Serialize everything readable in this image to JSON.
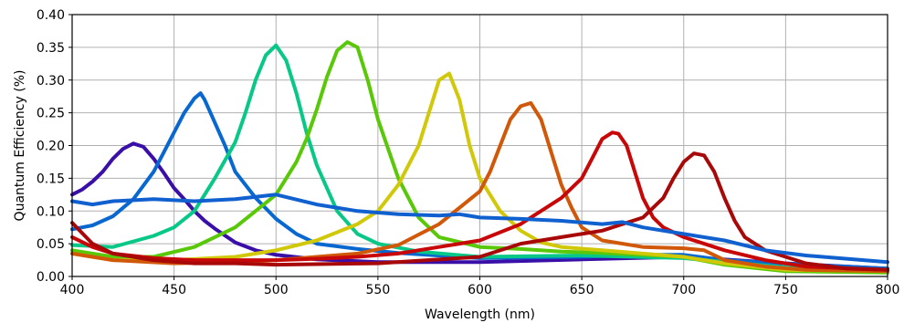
{
  "chart_data": {
    "type": "line",
    "title": "",
    "xlabel": "Wavelength (nm)",
    "ylabel": "Quantum Efficiency (%)",
    "xlim": [
      400,
      800
    ],
    "ylim": [
      0,
      0.4
    ],
    "xticks": [
      400,
      450,
      500,
      550,
      600,
      650,
      700,
      750,
      800
    ],
    "yticks": [
      0.0,
      0.05,
      0.1,
      0.15,
      0.2,
      0.25,
      0.3,
      0.35,
      0.4
    ],
    "xtick_labels": [
      "400",
      "450",
      "500",
      "550",
      "600",
      "650",
      "700",
      "750",
      "800"
    ],
    "ytick_labels": [
      "0.00",
      "0.05",
      "0.10",
      "0.15",
      "0.20",
      "0.25",
      "0.30",
      "0.35",
      "0.40"
    ],
    "grid": true,
    "legend": "none",
    "series": [
      {
        "color": "#3a0fa8",
        "x": [
          400,
          405,
          410,
          415,
          420,
          425,
          430,
          435,
          440,
          445,
          450,
          455,
          460,
          465,
          470,
          480,
          490,
          500,
          520,
          550,
          600,
          650,
          700,
          750,
          800
        ],
        "y": [
          0.125,
          0.133,
          0.145,
          0.16,
          0.18,
          0.195,
          0.203,
          0.198,
          0.18,
          0.158,
          0.135,
          0.118,
          0.1,
          0.085,
          0.073,
          0.052,
          0.04,
          0.033,
          0.026,
          0.022,
          0.022,
          0.026,
          0.03,
          0.02,
          0.012
        ]
      },
      {
        "color": "#0868d0",
        "x": [
          400,
          410,
          420,
          430,
          440,
          445,
          450,
          455,
          460,
          463,
          465,
          470,
          475,
          480,
          490,
          500,
          510,
          520,
          540,
          560,
          600,
          650,
          680,
          700,
          720,
          760,
          800
        ],
        "y": [
          0.072,
          0.078,
          0.092,
          0.118,
          0.16,
          0.19,
          0.22,
          0.25,
          0.272,
          0.28,
          0.27,
          0.235,
          0.2,
          0.16,
          0.12,
          0.088,
          0.065,
          0.05,
          0.042,
          0.036,
          0.028,
          0.03,
          0.033,
          0.033,
          0.025,
          0.018,
          0.012
        ]
      },
      {
        "color": "#08c888",
        "x": [
          400,
          420,
          440,
          450,
          460,
          470,
          480,
          485,
          490,
          495,
          500,
          505,
          510,
          515,
          520,
          530,
          540,
          550,
          570,
          600,
          650,
          700,
          750,
          800
        ],
        "y": [
          0.048,
          0.045,
          0.062,
          0.075,
          0.1,
          0.15,
          0.205,
          0.25,
          0.3,
          0.338,
          0.353,
          0.33,
          0.28,
          0.22,
          0.17,
          0.1,
          0.065,
          0.05,
          0.038,
          0.03,
          0.032,
          0.028,
          0.014,
          0.01
        ]
      },
      {
        "color": "#58c808",
        "x": [
          400,
          420,
          440,
          460,
          480,
          500,
          510,
          515,
          520,
          525,
          530,
          535,
          540,
          545,
          550,
          560,
          570,
          580,
          600,
          620,
          640,
          660,
          700,
          720,
          750,
          800
        ],
        "y": [
          0.04,
          0.03,
          0.03,
          0.045,
          0.075,
          0.125,
          0.175,
          0.21,
          0.255,
          0.305,
          0.345,
          0.358,
          0.35,
          0.3,
          0.24,
          0.15,
          0.09,
          0.06,
          0.045,
          0.042,
          0.038,
          0.036,
          0.03,
          0.018,
          0.008,
          0.006
        ]
      },
      {
        "color": "#d0c808",
        "x": [
          400,
          420,
          450,
          480,
          500,
          520,
          540,
          550,
          560,
          570,
          575,
          580,
          585,
          590,
          595,
          600,
          610,
          620,
          630,
          640,
          660,
          680,
          700,
          720,
          750,
          800
        ],
        "y": [
          0.035,
          0.025,
          0.025,
          0.03,
          0.04,
          0.055,
          0.08,
          0.1,
          0.14,
          0.2,
          0.25,
          0.3,
          0.31,
          0.27,
          0.2,
          0.15,
          0.1,
          0.07,
          0.052,
          0.045,
          0.04,
          0.035,
          0.03,
          0.02,
          0.01,
          0.008
        ]
      },
      {
        "color": "#d05808",
        "x": [
          400,
          420,
          450,
          480,
          500,
          540,
          560,
          580,
          590,
          600,
          605,
          610,
          615,
          620,
          625,
          630,
          635,
          640,
          645,
          650,
          660,
          680,
          700,
          710,
          720,
          740,
          760,
          800
        ],
        "y": [
          0.035,
          0.025,
          0.02,
          0.022,
          0.025,
          0.035,
          0.048,
          0.08,
          0.105,
          0.13,
          0.16,
          0.2,
          0.24,
          0.26,
          0.265,
          0.24,
          0.19,
          0.14,
          0.105,
          0.075,
          0.055,
          0.045,
          0.043,
          0.04,
          0.025,
          0.015,
          0.01,
          0.008
        ]
      },
      {
        "color": "#c80808",
        "x": [
          400,
          410,
          420,
          440,
          460,
          480,
          500,
          520,
          540,
          560,
          580,
          600,
          620,
          640,
          650,
          655,
          660,
          665,
          668,
          672,
          675,
          680,
          685,
          690,
          700,
          720,
          740,
          760,
          800
        ],
        "y": [
          0.06,
          0.045,
          0.035,
          0.028,
          0.025,
          0.025,
          0.025,
          0.027,
          0.03,
          0.035,
          0.045,
          0.055,
          0.08,
          0.12,
          0.15,
          0.18,
          0.21,
          0.22,
          0.218,
          0.2,
          0.17,
          0.12,
          0.09,
          0.075,
          0.06,
          0.04,
          0.025,
          0.015,
          0.01
        ]
      },
      {
        "color": "#a80808",
        "x": [
          400,
          410,
          420,
          440,
          460,
          480,
          500,
          550,
          600,
          620,
          640,
          660,
          680,
          690,
          695,
          700,
          705,
          710,
          715,
          720,
          725,
          730,
          740,
          750,
          760,
          780,
          800
        ],
        "y": [
          0.082,
          0.05,
          0.035,
          0.025,
          0.02,
          0.02,
          0.018,
          0.02,
          0.03,
          0.05,
          0.06,
          0.07,
          0.09,
          0.12,
          0.15,
          0.175,
          0.188,
          0.185,
          0.16,
          0.12,
          0.085,
          0.06,
          0.04,
          0.03,
          0.02,
          0.012,
          0.01
        ]
      },
      {
        "color": "#1060d0",
        "x": [
          400,
          410,
          420,
          440,
          460,
          480,
          500,
          520,
          540,
          560,
          580,
          590,
          600,
          620,
          640,
          660,
          670,
          680,
          690,
          700,
          720,
          740,
          760,
          780,
          800
        ],
        "y": [
          0.115,
          0.11,
          0.115,
          0.118,
          0.115,
          0.118,
          0.125,
          0.11,
          0.1,
          0.095,
          0.093,
          0.095,
          0.09,
          0.088,
          0.085,
          0.08,
          0.083,
          0.075,
          0.07,
          0.065,
          0.055,
          0.04,
          0.032,
          0.027,
          0.022
        ]
      }
    ]
  }
}
